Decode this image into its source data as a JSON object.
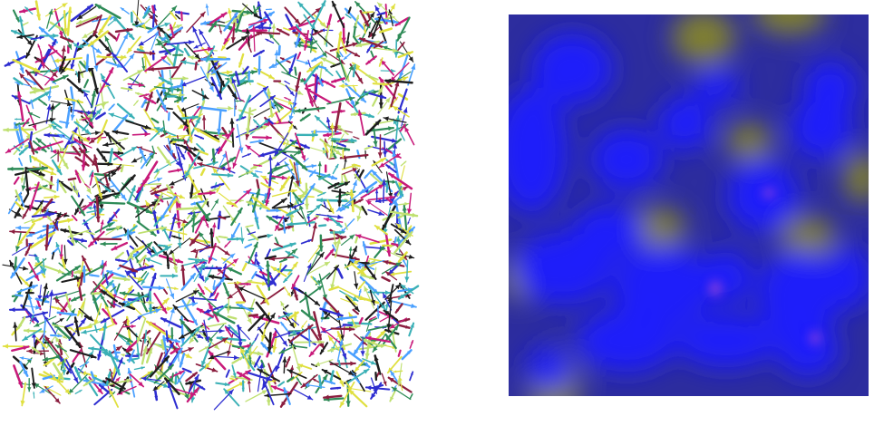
{
  "figure": {
    "left_panel": {
      "kind": "3d-vector-field-glyphs",
      "glyph": "arrow",
      "glyph_colors": [
        "#1e1e1e",
        "#c81a7a",
        "#2e8b57",
        "#3ab0b6",
        "#e0e040",
        "#2e2ed0",
        "#8b1e3f",
        "#4aa0ff",
        "#bfe070"
      ]
    },
    "right_panel": {
      "kind": "scalar-field-heatmap",
      "colors": {
        "base": "#2d2d9e",
        "high": "#1a1aff",
        "peak": "#b04ad8",
        "low": "#8a8a22"
      }
    }
  }
}
